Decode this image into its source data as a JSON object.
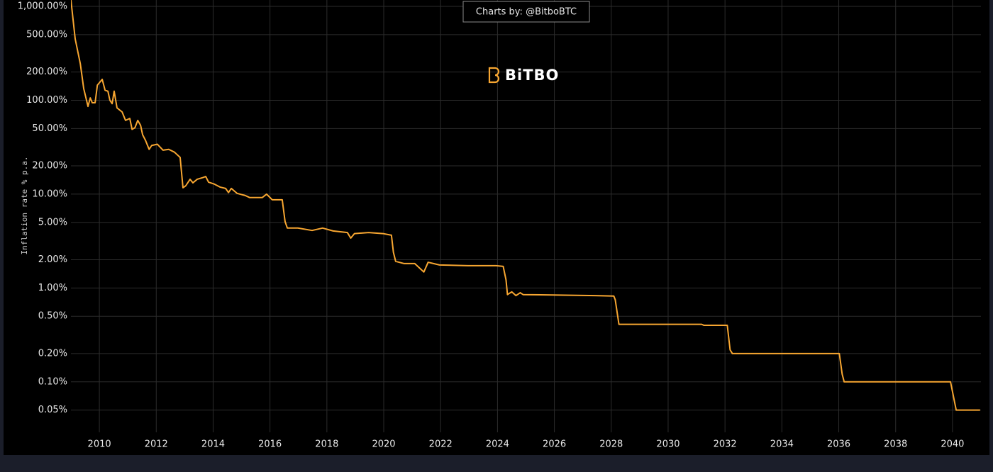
{
  "chart_data": {
    "type": "line",
    "title": "Charts by: @BitboBTC",
    "watermark": "BiTBO",
    "y_label": "Inflation rate % p.a.",
    "color": "#f7a631",
    "log_y": true,
    "grid": true,
    "xlim": [
      2009,
      2041
    ],
    "xticks": [
      2010,
      2012,
      2014,
      2016,
      2018,
      2020,
      2022,
      2024,
      2026,
      2028,
      2030,
      2032,
      2034,
      2036,
      2038,
      2040
    ],
    "ylim": [
      0.029,
      1170
    ],
    "yticks": [
      {
        "value": 1000,
        "label": "1,000.00%"
      },
      {
        "value": 500,
        "label": "500.00%"
      },
      {
        "value": 200,
        "label": "200.00%"
      },
      {
        "value": 100,
        "label": "100.00%"
      },
      {
        "value": 50,
        "label": "50.00%"
      },
      {
        "value": 20,
        "label": "20.00%"
      },
      {
        "value": 10,
        "label": "10.00%"
      },
      {
        "value": 5,
        "label": "5.00%"
      },
      {
        "value": 2,
        "label": "2.00%"
      },
      {
        "value": 1,
        "label": "1.00%"
      },
      {
        "value": 0.5,
        "label": "0.50%"
      },
      {
        "value": 0.2,
        "label": "0.20%"
      },
      {
        "value": 0.1,
        "label": "0.10%"
      },
      {
        "value": 0.05,
        "label": "0.05%"
      }
    ],
    "x": [
      2009.0,
      2009.15,
      2009.33,
      2009.45,
      2009.6,
      2009.68,
      2009.75,
      2009.85,
      2009.93,
      2010.1,
      2010.2,
      2010.3,
      2010.37,
      2010.45,
      2010.52,
      2010.62,
      2010.8,
      2010.92,
      2011.07,
      2011.15,
      2011.25,
      2011.35,
      2011.45,
      2011.52,
      2011.62,
      2011.75,
      2011.84,
      2012.04,
      2012.24,
      2012.44,
      2012.64,
      2012.84,
      2012.94,
      2013.04,
      2013.19,
      2013.29,
      2013.44,
      2013.64,
      2013.74,
      2013.84,
      2014.04,
      2014.24,
      2014.44,
      2014.54,
      2014.64,
      2014.84,
      2015.13,
      2015.28,
      2015.73,
      2015.88,
      2016.08,
      2016.43,
      2016.53,
      2016.61,
      2016.98,
      2017.48,
      2017.85,
      2018.22,
      2018.72,
      2018.84,
      2018.97,
      2019.47,
      2019.97,
      2020.27,
      2020.34,
      2020.42,
      2020.72,
      2021.09,
      2021.41,
      2021.56,
      2021.96,
      2022.96,
      2023.95,
      2024.2,
      2024.3,
      2024.35,
      2024.5,
      2024.65,
      2024.8,
      2024.9,
      2027.44,
      2028.09,
      2028.14,
      2028.27,
      2031.18,
      2031.26,
      2032.08,
      2032.18,
      2032.26,
      2036.02,
      2036.12,
      2036.19,
      2039.93,
      2040.13,
      2040.97
    ],
    "values": [
      1170,
      450,
      245,
      133,
      86,
      106,
      94,
      94,
      145,
      167,
      128,
      125,
      100,
      92,
      125,
      83,
      75,
      61,
      64,
      49,
      51,
      61,
      54,
      43,
      37.5,
      30,
      33,
      34,
      29.4,
      30,
      28,
      24.6,
      11.7,
      12.3,
      14.4,
      13.2,
      14.4,
      15,
      15.4,
      13.4,
      12.8,
      11.9,
      11.5,
      10.4,
      11.5,
      10.2,
      9.66,
      9.2,
      9.2,
      10,
      8.7,
      8.7,
      5.1,
      4.35,
      4.35,
      4.1,
      4.35,
      4.05,
      3.9,
      3.4,
      3.8,
      3.9,
      3.8,
      3.65,
      2.4,
      1.92,
      1.82,
      1.82,
      1.48,
      1.88,
      1.76,
      1.73,
      1.73,
      1.7,
      1.22,
      0.85,
      0.91,
      0.83,
      0.89,
      0.85,
      0.83,
      0.82,
      0.75,
      0.41,
      0.41,
      0.4,
      0.4,
      0.219,
      0.2,
      0.2,
      0.121,
      0.1,
      0.1,
      0.05,
      0.05
    ]
  }
}
